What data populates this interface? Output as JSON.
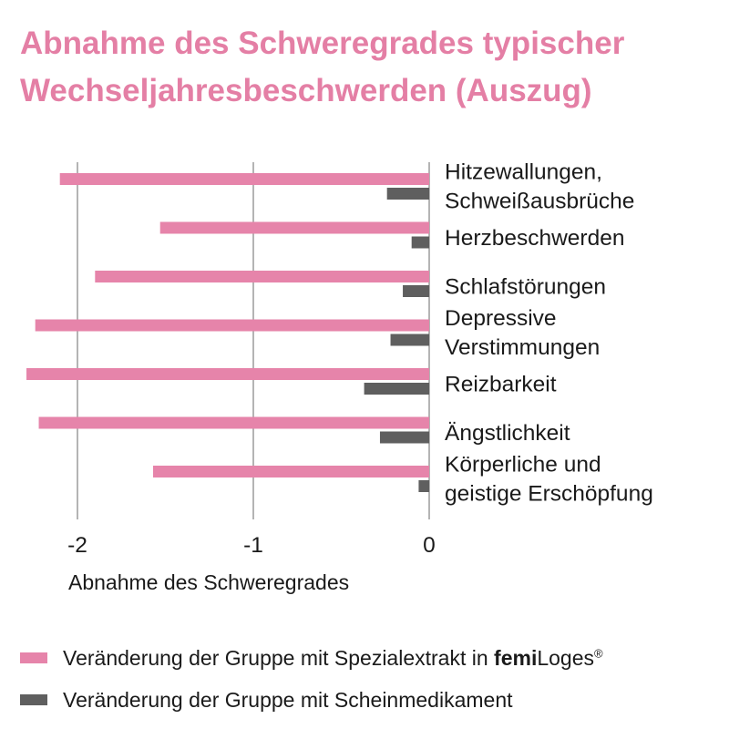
{
  "title_lines": [
    "Abnahme des Schweregrades typischer",
    "Wechseljahresbeschwerden (Auszug)"
  ],
  "colors": {
    "title": "#e47fa5",
    "spezial": "#e684aa",
    "schein": "#5f5f5f",
    "grid": "#8c8c8c",
    "text": "#1a1a1a"
  },
  "legend": [
    {
      "text": "Veränderung der Gruppe mit Spezialextrakt in ",
      "brand_bold": "femi",
      "brand_regular": "Loges",
      "mark": "®"
    },
    {
      "text": "Veränderung der Gruppe mit Scheinmedikament"
    }
  ],
  "chart_data": {
    "type": "bar",
    "orientation": "horizontal",
    "xlabel": "Abnahme des Schweregrades",
    "xlim": [
      -2.2,
      0
    ],
    "xticks": [
      -2,
      -1,
      0
    ],
    "xtick_labels": [
      "-2",
      "-1",
      "0"
    ],
    "grid": true,
    "categories": [
      [
        "Hitzewallungen,",
        "Schweißausbrüche"
      ],
      [
        "Herzbeschwerden"
      ],
      [
        "Schlafstörungen"
      ],
      [
        "Depressive",
        "Verstimmungen"
      ],
      [
        "Reizbarkeit"
      ],
      [
        "Ängstlichkeit"
      ],
      [
        "Körperliche und",
        "geistige Erschöpfung"
      ]
    ],
    "series": [
      {
        "name": "Veränderung der Gruppe mit Spezialextrakt in femiLoges®",
        "color": "#e684aa",
        "values": [
          -2.1,
          -1.53,
          -1.9,
          -2.24,
          -2.29,
          -2.22,
          -1.57
        ]
      },
      {
        "name": "Veränderung der Gruppe mit Scheinmedikament",
        "color": "#5f5f5f",
        "values": [
          -0.24,
          -0.1,
          -0.15,
          -0.22,
          -0.37,
          -0.28,
          -0.06
        ]
      }
    ]
  }
}
